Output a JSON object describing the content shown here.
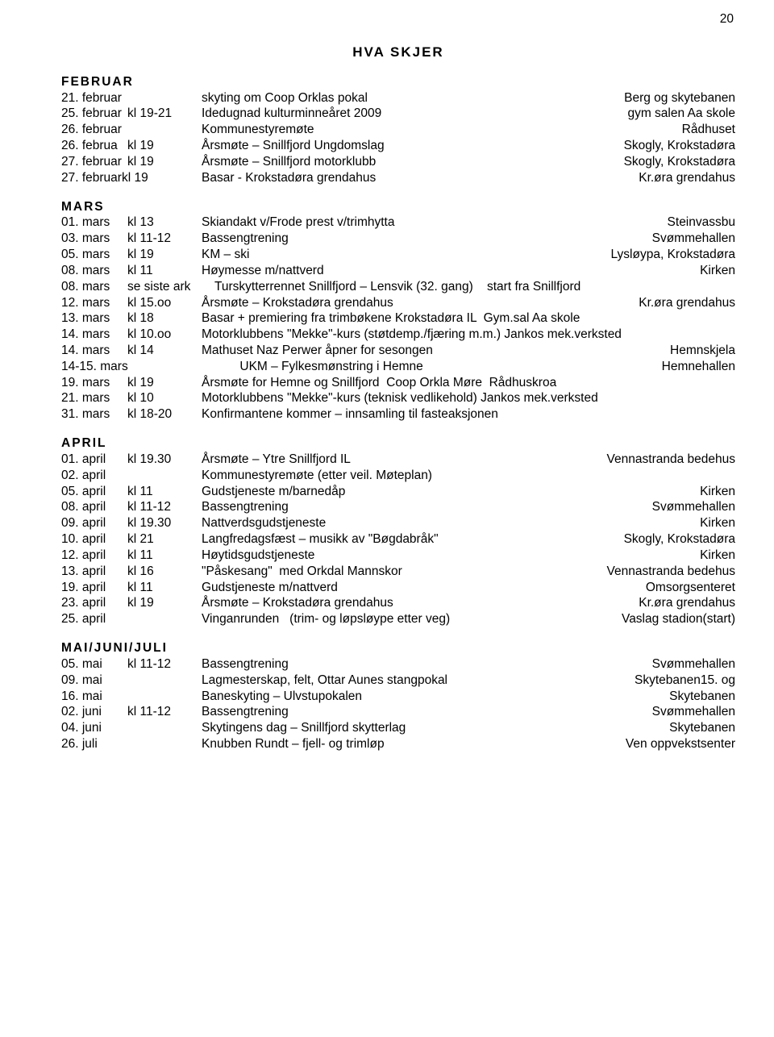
{
  "page_number": "20",
  "title": "HVA SKJER",
  "sections": [
    {
      "head": "FEBRUAR",
      "rows": [
        {
          "date": "21. februar",
          "time": "",
          "event": "skyting om Coop Orklas pokal",
          "loc": "Berg og skytebanen"
        },
        {
          "date": "25. februar",
          "time": "kl 19-21",
          "event": "Idedugnad kulturminneåret 2009",
          "loc": "gym salen Aa skole"
        },
        {
          "date": "26. februar",
          "time": "",
          "event": "Kommunestyremøte",
          "loc": "Rådhuset"
        },
        {
          "date": "26. februa",
          "time": "kl 19",
          "event": "Årsmøte – Snillfjord Ungdomslag",
          "loc": "Skogly, Krokstadøra"
        },
        {
          "date": "27. februar",
          "time": "kl 19",
          "event": "Årsmøte – Snillfjord motorklubb",
          "loc": "Skogly, Krokstadøra"
        },
        {
          "date": "27. februarkl 19",
          "time": "",
          "event": "Basar - Krokstadøra grendahus",
          "loc": "Kr.øra grendahus",
          "date_wide": true
        }
      ]
    },
    {
      "head": "MARS",
      "rows": [
        {
          "date": "01. mars",
          "time": "kl 13",
          "event": "Skiandakt v/Frode prest v/trimhytta",
          "loc": "Steinvassbu"
        },
        {
          "date": "03. mars",
          "time": "kl 11-12",
          "event": "Bassengtrening",
          "loc": "Svømmehallen"
        },
        {
          "date": "05. mars",
          "time": "kl 19",
          "event": "KM – ski",
          "loc": "Lysløypa, Krokstadøra"
        },
        {
          "date": "08. mars",
          "time": "kl 11",
          "event": "Høymesse m/nattverd",
          "loc": "Kirken"
        },
        {
          "date": "08. mars",
          "time": "se siste ark",
          "event": "Turskytterrennet Snillfjord – Lensvik (32. gang)    start fra Snillfjord",
          "loc": "",
          "time_wide": true
        },
        {
          "date": "12. mars",
          "time": "kl 15.oo",
          "event": "Årsmøte – Krokstadøra grendahus",
          "loc": "Kr.øra grendahus"
        },
        {
          "date": "13. mars",
          "time": "kl 18",
          "event": "Basar + premiering fra trimbøkene Krokstadøra IL  Gym.sal Aa skole",
          "loc": ""
        },
        {
          "date": "14. mars",
          "time": "kl 10.oo",
          "event": "Motorklubbens \"Mekke\"-kurs (støtdemp./fjæring m.m.) Jankos mek.verksted",
          "loc": ""
        },
        {
          "date": "14. mars",
          "time": "kl 14",
          "event": "Mathuset Naz Perwer åpner for sesongen",
          "loc": "Hemnskjela"
        },
        {
          "date": "14-15. mars",
          "time": "",
          "event": "           UKM – Fylkesmønstring i Hemne",
          "loc": "Hemnehallen",
          "date_wide": true
        },
        {
          "date": "19. mars",
          "time": "kl 19",
          "event": "Årsmøte for Hemne og Snillfjord  Coop Orkla Møre  Rådhuskroa",
          "loc": ""
        },
        {
          "date": "21. mars",
          "time": "kl 10",
          "event": "Motorklubbens \"Mekke\"-kurs (teknisk vedlikehold) Jankos mek.verksted",
          "loc": ""
        },
        {
          "date": "31. mars",
          "time": "kl 18-20",
          "event": "Konfirmantene kommer – innsamling til fasteaksjonen",
          "loc": ""
        }
      ]
    },
    {
      "head": "APRIL",
      "rows": [
        {
          "date": "01. april",
          "time": "kl 19.30",
          "event": "Årsmøte – Ytre Snillfjord IL",
          "loc": "Vennastranda bedehus"
        },
        {
          "date": "02. april",
          "time": "",
          "event": "Kommunestyremøte (etter veil. Møteplan)",
          "loc": ""
        },
        {
          "date": "05. april",
          "time": "kl 11",
          "event": "Gudstjeneste m/barnedåp",
          "loc": "Kirken"
        },
        {
          "date": "08. april",
          "time": "kl 11-12",
          "event": "Bassengtrening",
          "loc": "Svømmehallen"
        },
        {
          "date": "09. april",
          "time": "kl 19.30",
          "event": "Nattverdsgudstjeneste",
          "loc": "Kirken"
        },
        {
          "date": "10. april",
          "time": "kl 21",
          "event": "Langfredagsfæst – musikk av \"Bøgdabråk\"",
          "loc": "Skogly, Krokstadøra"
        },
        {
          "date": "12. april",
          "time": "kl 11",
          "event": "Høytidsgudstjeneste",
          "loc": "Kirken"
        },
        {
          "date": "13. april",
          "time": "kl 16",
          "event": "\"Påskesang\"  med Orkdal Mannskor",
          "loc": "Vennastranda bedehus"
        },
        {
          "date": "19. april",
          "time": "kl 11",
          "event": "Gudstjeneste m/nattverd",
          "loc": "Omsorgsenteret"
        },
        {
          "date": "23. april",
          "time": "kl 19",
          "event": "Årsmøte – Krokstadøra grendahus",
          "loc": "Kr.øra grendahus"
        },
        {
          "date": "25. april",
          "time": "",
          "event": "Vinganrunden   (trim- og løpsløype etter veg)",
          "loc": "Vaslag stadion(start)"
        }
      ]
    },
    {
      "head": "MAI/JUNI/JULI",
      "rows": [
        {
          "date": "05. mai",
          "time": "kl 11-12",
          "event": "Bassengtrening",
          "loc": "Svømmehallen"
        },
        {
          "date": "09. mai",
          "time": "",
          "event": "Lagmesterskap, felt, Ottar Aunes stangpokal",
          "loc": "Skytebanen15. og"
        },
        {
          "date": "16. mai",
          "time": "",
          "event": "Baneskyting – Ulvstupokalen",
          "loc": "Skytebanen"
        },
        {
          "date": "02. juni",
          "time": "kl 11-12",
          "event": "Bassengtrening",
          "loc": "Svømmehallen"
        },
        {
          "date": "04. juni",
          "time": "",
          "event": "Skytingens dag – Snillfjord skytterlag",
          "loc": "Skytebanen"
        },
        {
          "date": "26. juli",
          "time": "",
          "event": "Knubben Rundt – fjell- og trimløp",
          "loc": "Ven oppvekstsenter"
        }
      ]
    }
  ]
}
